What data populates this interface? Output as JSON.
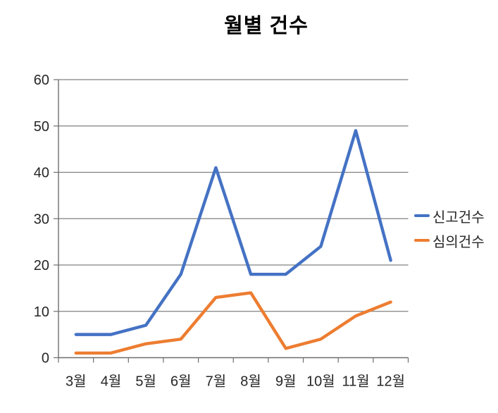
{
  "chart_data": {
    "type": "line",
    "title": "월별 건수",
    "categories": [
      "3월",
      "4월",
      "5월",
      "6월",
      "7월",
      "8월",
      "9월",
      "10월",
      "11월",
      "12월"
    ],
    "series": [
      {
        "name": "신고건수",
        "color": "#4472C4",
        "values": [
          5,
          5,
          7,
          18,
          41,
          18,
          18,
          24,
          49,
          21
        ]
      },
      {
        "name": "심의건수",
        "color": "#ED7D31",
        "values": [
          1,
          1,
          3,
          4,
          13,
          14,
          2,
          4,
          9,
          12
        ]
      }
    ],
    "xlabel": "",
    "ylabel": "",
    "ylim": [
      0,
      60
    ],
    "y_tick_step": 10,
    "y_tick_labels": [
      "0",
      "10",
      "20",
      "30",
      "40",
      "50",
      "60"
    ],
    "grid": "horizontal",
    "legend_position": "right",
    "grid_color": "#808080",
    "axis_color": "#6e6e6e",
    "text_color": "#262626",
    "background_color": "#ffffff"
  }
}
